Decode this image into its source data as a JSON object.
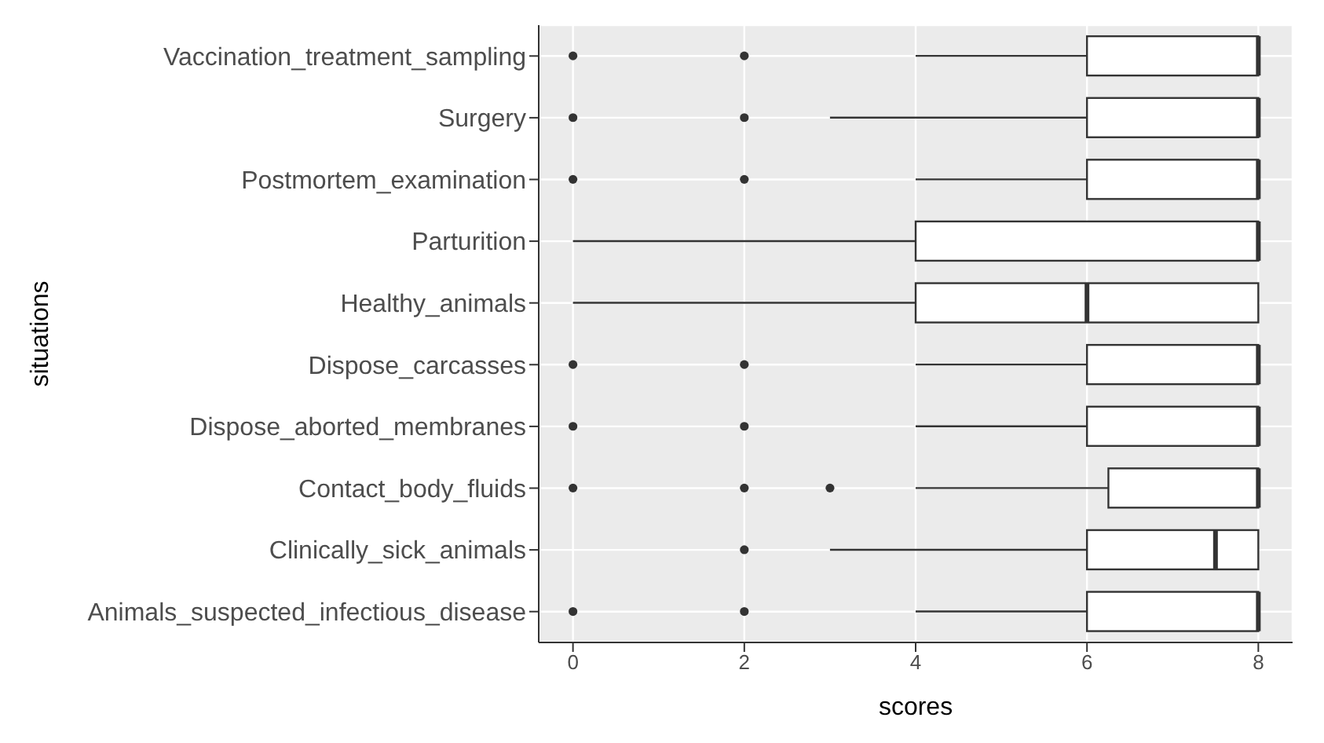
{
  "chart_data": {
    "type": "box",
    "orientation": "horizontal",
    "xlabel": "scores",
    "ylabel": "situations",
    "categories": [
      "Vaccination_treatment_sampling",
      "Surgery",
      "Postmortem_examination",
      "Parturition",
      "Healthy_animals",
      "Dispose_carcasses",
      "Dispose_aborted_membranes",
      "Contact_body_fluids",
      "Clinically_sick_animals",
      "Animals_suspected_infectious_disease"
    ],
    "boxes": [
      {
        "low": 4,
        "q1": 6,
        "median": 8,
        "q3": 8,
        "high": 8,
        "outliers": [
          0,
          2
        ]
      },
      {
        "low": 3,
        "q1": 6,
        "median": 8,
        "q3": 8,
        "high": 8,
        "outliers": [
          0,
          2
        ]
      },
      {
        "low": 4,
        "q1": 6,
        "median": 8,
        "q3": 8,
        "high": 8,
        "outliers": [
          0,
          2
        ]
      },
      {
        "low": 0,
        "q1": 4,
        "median": 8,
        "q3": 8,
        "high": 8
      },
      {
        "low": 0,
        "q1": 4,
        "median": 6,
        "q3": 8,
        "high": 8
      },
      {
        "low": 4,
        "q1": 6,
        "median": 8,
        "q3": 8,
        "high": 8,
        "outliers": [
          0,
          2
        ]
      },
      {
        "low": 4,
        "q1": 6,
        "median": 8,
        "q3": 8,
        "high": 8,
        "outliers": [
          0,
          2
        ]
      },
      {
        "low": 4,
        "q1": 6.25,
        "median": 8,
        "q3": 8,
        "high": 8,
        "outliers": [
          0,
          2,
          3
        ]
      },
      {
        "low": 3,
        "q1": 6,
        "median": 7.5,
        "q3": 8,
        "high": 8,
        "outliers": [
          2
        ]
      },
      {
        "low": 4,
        "q1": 6,
        "median": 8,
        "q3": 8,
        "high": 8,
        "outliers": [
          0,
          2
        ]
      }
    ],
    "xlim": [
      -0.4,
      8.4
    ],
    "xticks": [
      0,
      2,
      4,
      6,
      8
    ],
    "grid": true
  }
}
